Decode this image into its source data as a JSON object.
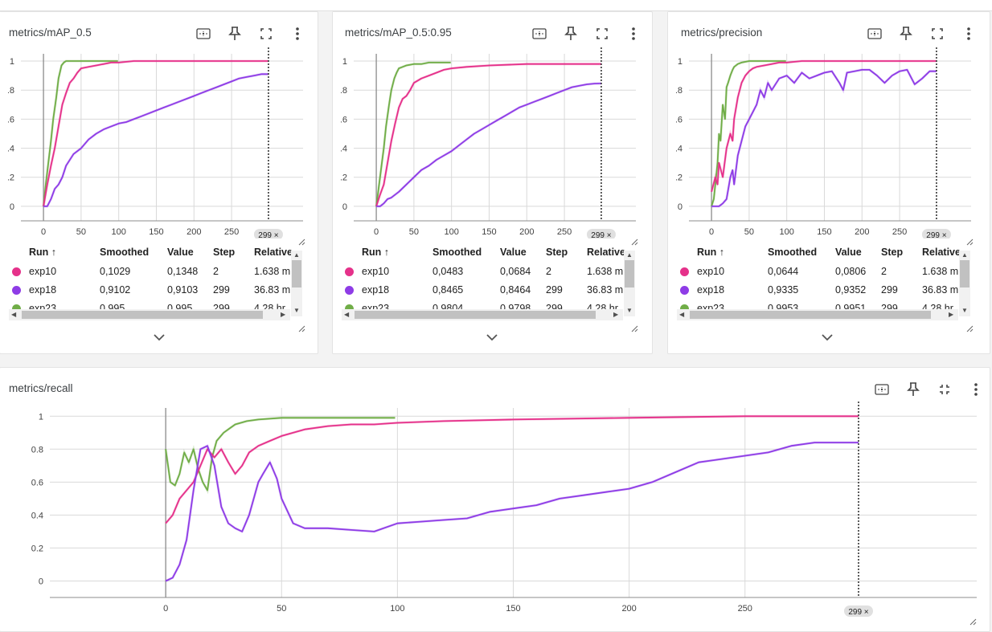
{
  "colors": {
    "exp10": "#e5318a",
    "exp18": "#8e3ce6",
    "exp23": "#70ad47",
    "grid": "#d9d9d9",
    "axis": "#9e9e9e"
  },
  "icons": {
    "fit": "fit-domain-icon",
    "pin": "pin-icon",
    "fullscreen": "fullscreen-icon",
    "collapse": "exit-fullscreen-icon",
    "more": "more-vert-icon",
    "expand": "chevron-down-icon"
  },
  "table_headers": {
    "run": "Run ↑",
    "smoothed": "Smoothed",
    "value": "Value",
    "step": "Step",
    "relative": "Relative"
  },
  "cards": [
    {
      "title": "metrics/mAP_0.5",
      "step_chip": "299 ×",
      "rows": [
        {
          "run": "exp10",
          "smoothed": "0,1029",
          "value": "0,1348",
          "step": "2",
          "relative": "1.638 m"
        },
        {
          "run": "exp18",
          "smoothed": "0,9102",
          "value": "0,9103",
          "step": "299",
          "relative": "36.83 m"
        },
        {
          "run": "exp23",
          "smoothed": "0,995",
          "value": "0,995",
          "step": "299",
          "relative": "4.28 hr"
        }
      ]
    },
    {
      "title": "metrics/mAP_0.5:0.95",
      "step_chip": "299 ×",
      "rows": [
        {
          "run": "exp10",
          "smoothed": "0,0483",
          "value": "0,0684",
          "step": "2",
          "relative": "1.638 m"
        },
        {
          "run": "exp18",
          "smoothed": "0,8465",
          "value": "0,8464",
          "step": "299",
          "relative": "36.83 m"
        },
        {
          "run": "exp23",
          "smoothed": "0,9804",
          "value": "0,9798",
          "step": "299",
          "relative": "4.28 hr"
        }
      ]
    },
    {
      "title": "metrics/precision",
      "step_chip": "299 ×",
      "rows": [
        {
          "run": "exp10",
          "smoothed": "0,0644",
          "value": "0,0806",
          "step": "2",
          "relative": "1.638 m"
        },
        {
          "run": "exp18",
          "smoothed": "0,9335",
          "value": "0,9352",
          "step": "299",
          "relative": "36.83 m"
        },
        {
          "run": "exp23",
          "smoothed": "0,9953",
          "value": "0,9951",
          "step": "299",
          "relative": "4.28 hr"
        }
      ]
    },
    {
      "title": "metrics/recall",
      "step_chip": "299 ×"
    }
  ],
  "chart_data": [
    {
      "type": "line",
      "title": "metrics/mAP_0.5",
      "xlim": [
        -30,
        345
      ],
      "ylim": [
        -0.1,
        1.05
      ],
      "xticks": [
        0,
        50,
        100,
        150,
        200,
        250
      ],
      "yticks": [
        0,
        0.2,
        0.4,
        0.6,
        0.8,
        1
      ],
      "series": [
        {
          "name": "exp23",
          "color": "#70ad47",
          "x": [
            0,
            3,
            7,
            10,
            13,
            17,
            20,
            24,
            27,
            30,
            35,
            40,
            50,
            60,
            70,
            80,
            99
          ],
          "y": [
            0,
            0.15,
            0.32,
            0.45,
            0.6,
            0.75,
            0.88,
            0.97,
            0.99,
            1,
            1,
            1,
            1,
            1,
            1,
            1,
            1
          ]
        },
        {
          "name": "exp10",
          "color": "#e5318a",
          "x": [
            0,
            5,
            10,
            15,
            20,
            25,
            30,
            35,
            40,
            45,
            50,
            60,
            70,
            80,
            90,
            100,
            120,
            150,
            200,
            250,
            299
          ],
          "y": [
            0,
            0.15,
            0.28,
            0.4,
            0.55,
            0.7,
            0.78,
            0.85,
            0.88,
            0.92,
            0.95,
            0.96,
            0.97,
            0.98,
            0.99,
            0.99,
            1,
            1,
            1,
            1,
            1
          ]
        },
        {
          "name": "exp18",
          "color": "#8e3ce6",
          "x": [
            0,
            5,
            10,
            15,
            20,
            25,
            30,
            40,
            50,
            60,
            70,
            80,
            90,
            100,
            110,
            120,
            130,
            140,
            150,
            160,
            170,
            180,
            190,
            200,
            210,
            220,
            230,
            240,
            250,
            260,
            270,
            280,
            290,
            299
          ],
          "y": [
            0,
            0,
            0.05,
            0.12,
            0.15,
            0.2,
            0.28,
            0.36,
            0.4,
            0.46,
            0.5,
            0.53,
            0.55,
            0.57,
            0.58,
            0.6,
            0.62,
            0.64,
            0.66,
            0.68,
            0.7,
            0.72,
            0.74,
            0.76,
            0.78,
            0.8,
            0.82,
            0.84,
            0.86,
            0.88,
            0.89,
            0.9,
            0.91,
            0.91
          ]
        }
      ]
    },
    {
      "type": "line",
      "title": "metrics/mAP_0.5:0.95",
      "xlim": [
        -30,
        345
      ],
      "ylim": [
        -0.1,
        1.05
      ],
      "xticks": [
        0,
        50,
        100,
        150,
        200,
        250
      ],
      "yticks": [
        0,
        0.2,
        0.4,
        0.6,
        0.8,
        1
      ],
      "series": [
        {
          "name": "exp23",
          "color": "#70ad47",
          "x": [
            0,
            3,
            7,
            10,
            13,
            17,
            20,
            24,
            27,
            30,
            35,
            40,
            50,
            60,
            70,
            80,
            99
          ],
          "y": [
            0,
            0.12,
            0.28,
            0.4,
            0.55,
            0.7,
            0.8,
            0.88,
            0.92,
            0.95,
            0.96,
            0.97,
            0.98,
            0.98,
            0.99,
            0.99,
            0.99
          ]
        },
        {
          "name": "exp10",
          "color": "#e5318a",
          "x": [
            0,
            5,
            10,
            15,
            20,
            25,
            30,
            35,
            40,
            45,
            50,
            60,
            70,
            80,
            90,
            100,
            120,
            150,
            200,
            250,
            299
          ],
          "y": [
            0,
            0.08,
            0.15,
            0.3,
            0.45,
            0.57,
            0.68,
            0.74,
            0.76,
            0.8,
            0.85,
            0.88,
            0.9,
            0.92,
            0.94,
            0.95,
            0.96,
            0.97,
            0.98,
            0.98,
            0.98
          ]
        },
        {
          "name": "exp18",
          "color": "#8e3ce6",
          "x": [
            0,
            5,
            10,
            15,
            20,
            25,
            30,
            40,
            50,
            60,
            70,
            80,
            90,
            100,
            110,
            120,
            130,
            140,
            150,
            160,
            170,
            180,
            190,
            200,
            210,
            220,
            230,
            240,
            250,
            260,
            270,
            280,
            290,
            299
          ],
          "y": [
            0,
            0,
            0.02,
            0.05,
            0.06,
            0.08,
            0.1,
            0.15,
            0.2,
            0.25,
            0.28,
            0.32,
            0.35,
            0.38,
            0.42,
            0.46,
            0.5,
            0.53,
            0.56,
            0.59,
            0.62,
            0.65,
            0.68,
            0.7,
            0.72,
            0.74,
            0.76,
            0.78,
            0.8,
            0.82,
            0.83,
            0.84,
            0.845,
            0.846
          ]
        }
      ]
    },
    {
      "type": "line",
      "title": "metrics/precision",
      "xlim": [
        -30,
        345
      ],
      "ylim": [
        -0.1,
        1.05
      ],
      "xticks": [
        0,
        50,
        100,
        150,
        200,
        250
      ],
      "yticks": [
        0,
        0.2,
        0.4,
        0.6,
        0.8,
        1
      ],
      "series": [
        {
          "name": "exp23",
          "color": "#70ad47",
          "x": [
            0,
            3,
            5,
            8,
            10,
            12,
            15,
            18,
            20,
            22,
            25,
            28,
            30,
            35,
            40,
            50,
            60,
            70,
            80,
            99
          ],
          "y": [
            0,
            0.05,
            0.15,
            0.3,
            0.5,
            0.45,
            0.7,
            0.6,
            0.82,
            0.85,
            0.9,
            0.94,
            0.96,
            0.98,
            0.99,
            1,
            1,
            1,
            1,
            1
          ]
        },
        {
          "name": "exp10",
          "color": "#e5318a",
          "x": [
            0,
            5,
            8,
            10,
            15,
            20,
            25,
            28,
            30,
            35,
            40,
            45,
            50,
            55,
            60,
            70,
            80,
            90,
            100,
            120,
            150,
            200,
            250,
            299
          ],
          "y": [
            0.1,
            0.2,
            0.15,
            0.3,
            0.2,
            0.4,
            0.5,
            0.45,
            0.6,
            0.75,
            0.85,
            0.9,
            0.93,
            0.95,
            0.96,
            0.97,
            0.98,
            0.99,
            0.99,
            1,
            1,
            1,
            1,
            1
          ]
        },
        {
          "name": "exp18",
          "color": "#8e3ce6",
          "x": [
            0,
            10,
            15,
            20,
            25,
            28,
            30,
            35,
            40,
            45,
            50,
            55,
            60,
            65,
            70,
            75,
            80,
            90,
            100,
            110,
            120,
            130,
            140,
            150,
            160,
            170,
            175,
            180,
            190,
            200,
            210,
            220,
            230,
            240,
            250,
            260,
            270,
            280,
            290,
            299
          ],
          "y": [
            0,
            0,
            0.02,
            0.05,
            0.2,
            0.25,
            0.15,
            0.35,
            0.45,
            0.55,
            0.6,
            0.65,
            0.7,
            0.8,
            0.75,
            0.85,
            0.8,
            0.88,
            0.9,
            0.85,
            0.92,
            0.88,
            0.9,
            0.92,
            0.93,
            0.85,
            0.8,
            0.92,
            0.93,
            0.94,
            0.94,
            0.9,
            0.85,
            0.9,
            0.93,
            0.94,
            0.84,
            0.88,
            0.93,
            0.93
          ]
        }
      ]
    },
    {
      "type": "line",
      "title": "metrics/recall",
      "xlim": [
        -50,
        350
      ],
      "ylim": [
        -0.1,
        1.05
      ],
      "xticks": [
        0,
        50,
        100,
        150,
        200,
        250
      ],
      "yticks": [
        0,
        0.2,
        0.4,
        0.6,
        0.8,
        1
      ],
      "series": [
        {
          "name": "exp23",
          "color": "#70ad47",
          "x": [
            0,
            2,
            4,
            6,
            8,
            10,
            12,
            14,
            16,
            18,
            20,
            22,
            25,
            28,
            30,
            35,
            40,
            50,
            60,
            70,
            80,
            99
          ],
          "y": [
            0.8,
            0.6,
            0.58,
            0.65,
            0.78,
            0.72,
            0.8,
            0.68,
            0.6,
            0.55,
            0.75,
            0.85,
            0.9,
            0.93,
            0.95,
            0.97,
            0.98,
            0.99,
            0.99,
            0.99,
            0.99,
            0.99
          ]
        },
        {
          "name": "exp10",
          "color": "#e5318a",
          "x": [
            0,
            3,
            6,
            9,
            12,
            15,
            18,
            21,
            24,
            27,
            30,
            33,
            36,
            40,
            45,
            50,
            60,
            70,
            80,
            90,
            100,
            120,
            150,
            200,
            250,
            299
          ],
          "y": [
            0.35,
            0.4,
            0.5,
            0.55,
            0.6,
            0.7,
            0.8,
            0.75,
            0.8,
            0.72,
            0.65,
            0.7,
            0.78,
            0.82,
            0.85,
            0.88,
            0.92,
            0.94,
            0.95,
            0.95,
            0.96,
            0.97,
            0.98,
            0.99,
            1,
            1
          ]
        },
        {
          "name": "exp18",
          "color": "#8e3ce6",
          "x": [
            0,
            3,
            6,
            9,
            12,
            15,
            18,
            21,
            24,
            27,
            30,
            33,
            36,
            40,
            42,
            45,
            48,
            50,
            55,
            60,
            70,
            80,
            90,
            100,
            110,
            120,
            130,
            140,
            150,
            160,
            170,
            180,
            190,
            200,
            210,
            220,
            230,
            240,
            250,
            260,
            270,
            280,
            290,
            299
          ],
          "y": [
            0,
            0.02,
            0.1,
            0.25,
            0.55,
            0.8,
            0.82,
            0.7,
            0.45,
            0.35,
            0.32,
            0.3,
            0.4,
            0.6,
            0.65,
            0.72,
            0.62,
            0.5,
            0.35,
            0.32,
            0.32,
            0.31,
            0.3,
            0.35,
            0.36,
            0.37,
            0.38,
            0.42,
            0.44,
            0.46,
            0.5,
            0.52,
            0.54,
            0.56,
            0.6,
            0.66,
            0.72,
            0.74,
            0.76,
            0.78,
            0.82,
            0.84,
            0.84,
            0.84
          ]
        }
      ]
    }
  ]
}
